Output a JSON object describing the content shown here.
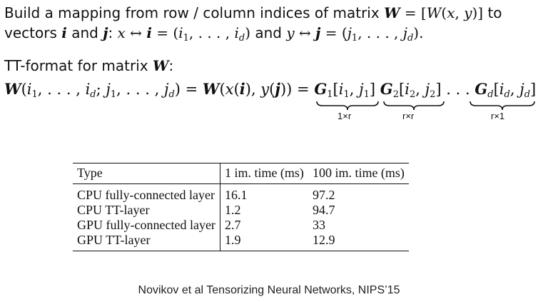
{
  "intro": {
    "line1_text": "Build a mapping from row / column indices of matrix",
    "line1_math": "W = [W(x, y)]",
    "line1_end": "to",
    "line2_text": "vectors",
    "line2_i": "i",
    "line2_and": "and",
    "line2_j": "j",
    "line2_colon": ":",
    "line2_math1": "x ↔ i = (i₁, . . . , i",
    "line2_and2": "and",
    "line2_math2": "y ↔ j = (j₁, . . . , j"
  },
  "tt_heading": {
    "text": "TT-format for matrix",
    "symbol": "W",
    "colon": ":"
  },
  "formula": {
    "lhs": "W(i₁, . . . , i",
    "lhs2": "; j₁, . . . , j",
    "lhs3": ") = ",
    "mid": "W(x(i), y(j)) = ",
    "g1": "G₁[i₁, j₁]",
    "g2": "G₂[i₂, j₂]",
    "dots": ". . .",
    "gd": "G",
    "gd2": "[i",
    "gd3": ", j",
    "gd4": "]",
    "brace1": "1×r",
    "brace2": "r×r",
    "brace3": "r×1"
  },
  "table": {
    "headers": [
      "Type",
      "1 im. time (ms)",
      "100 im. time (ms)"
    ],
    "rows": [
      [
        "CPU fully-connected layer",
        "16.1",
        "97.2"
      ],
      [
        "CPU TT-layer",
        "1.2",
        "94.7"
      ],
      [
        "GPU fully-connected layer",
        "2.7",
        "33"
      ],
      [
        "GPU TT-layer",
        "1.9",
        "12.9"
      ]
    ]
  },
  "citation": "Novikov et al Tensorizing Neural Networks, NIPS’15"
}
